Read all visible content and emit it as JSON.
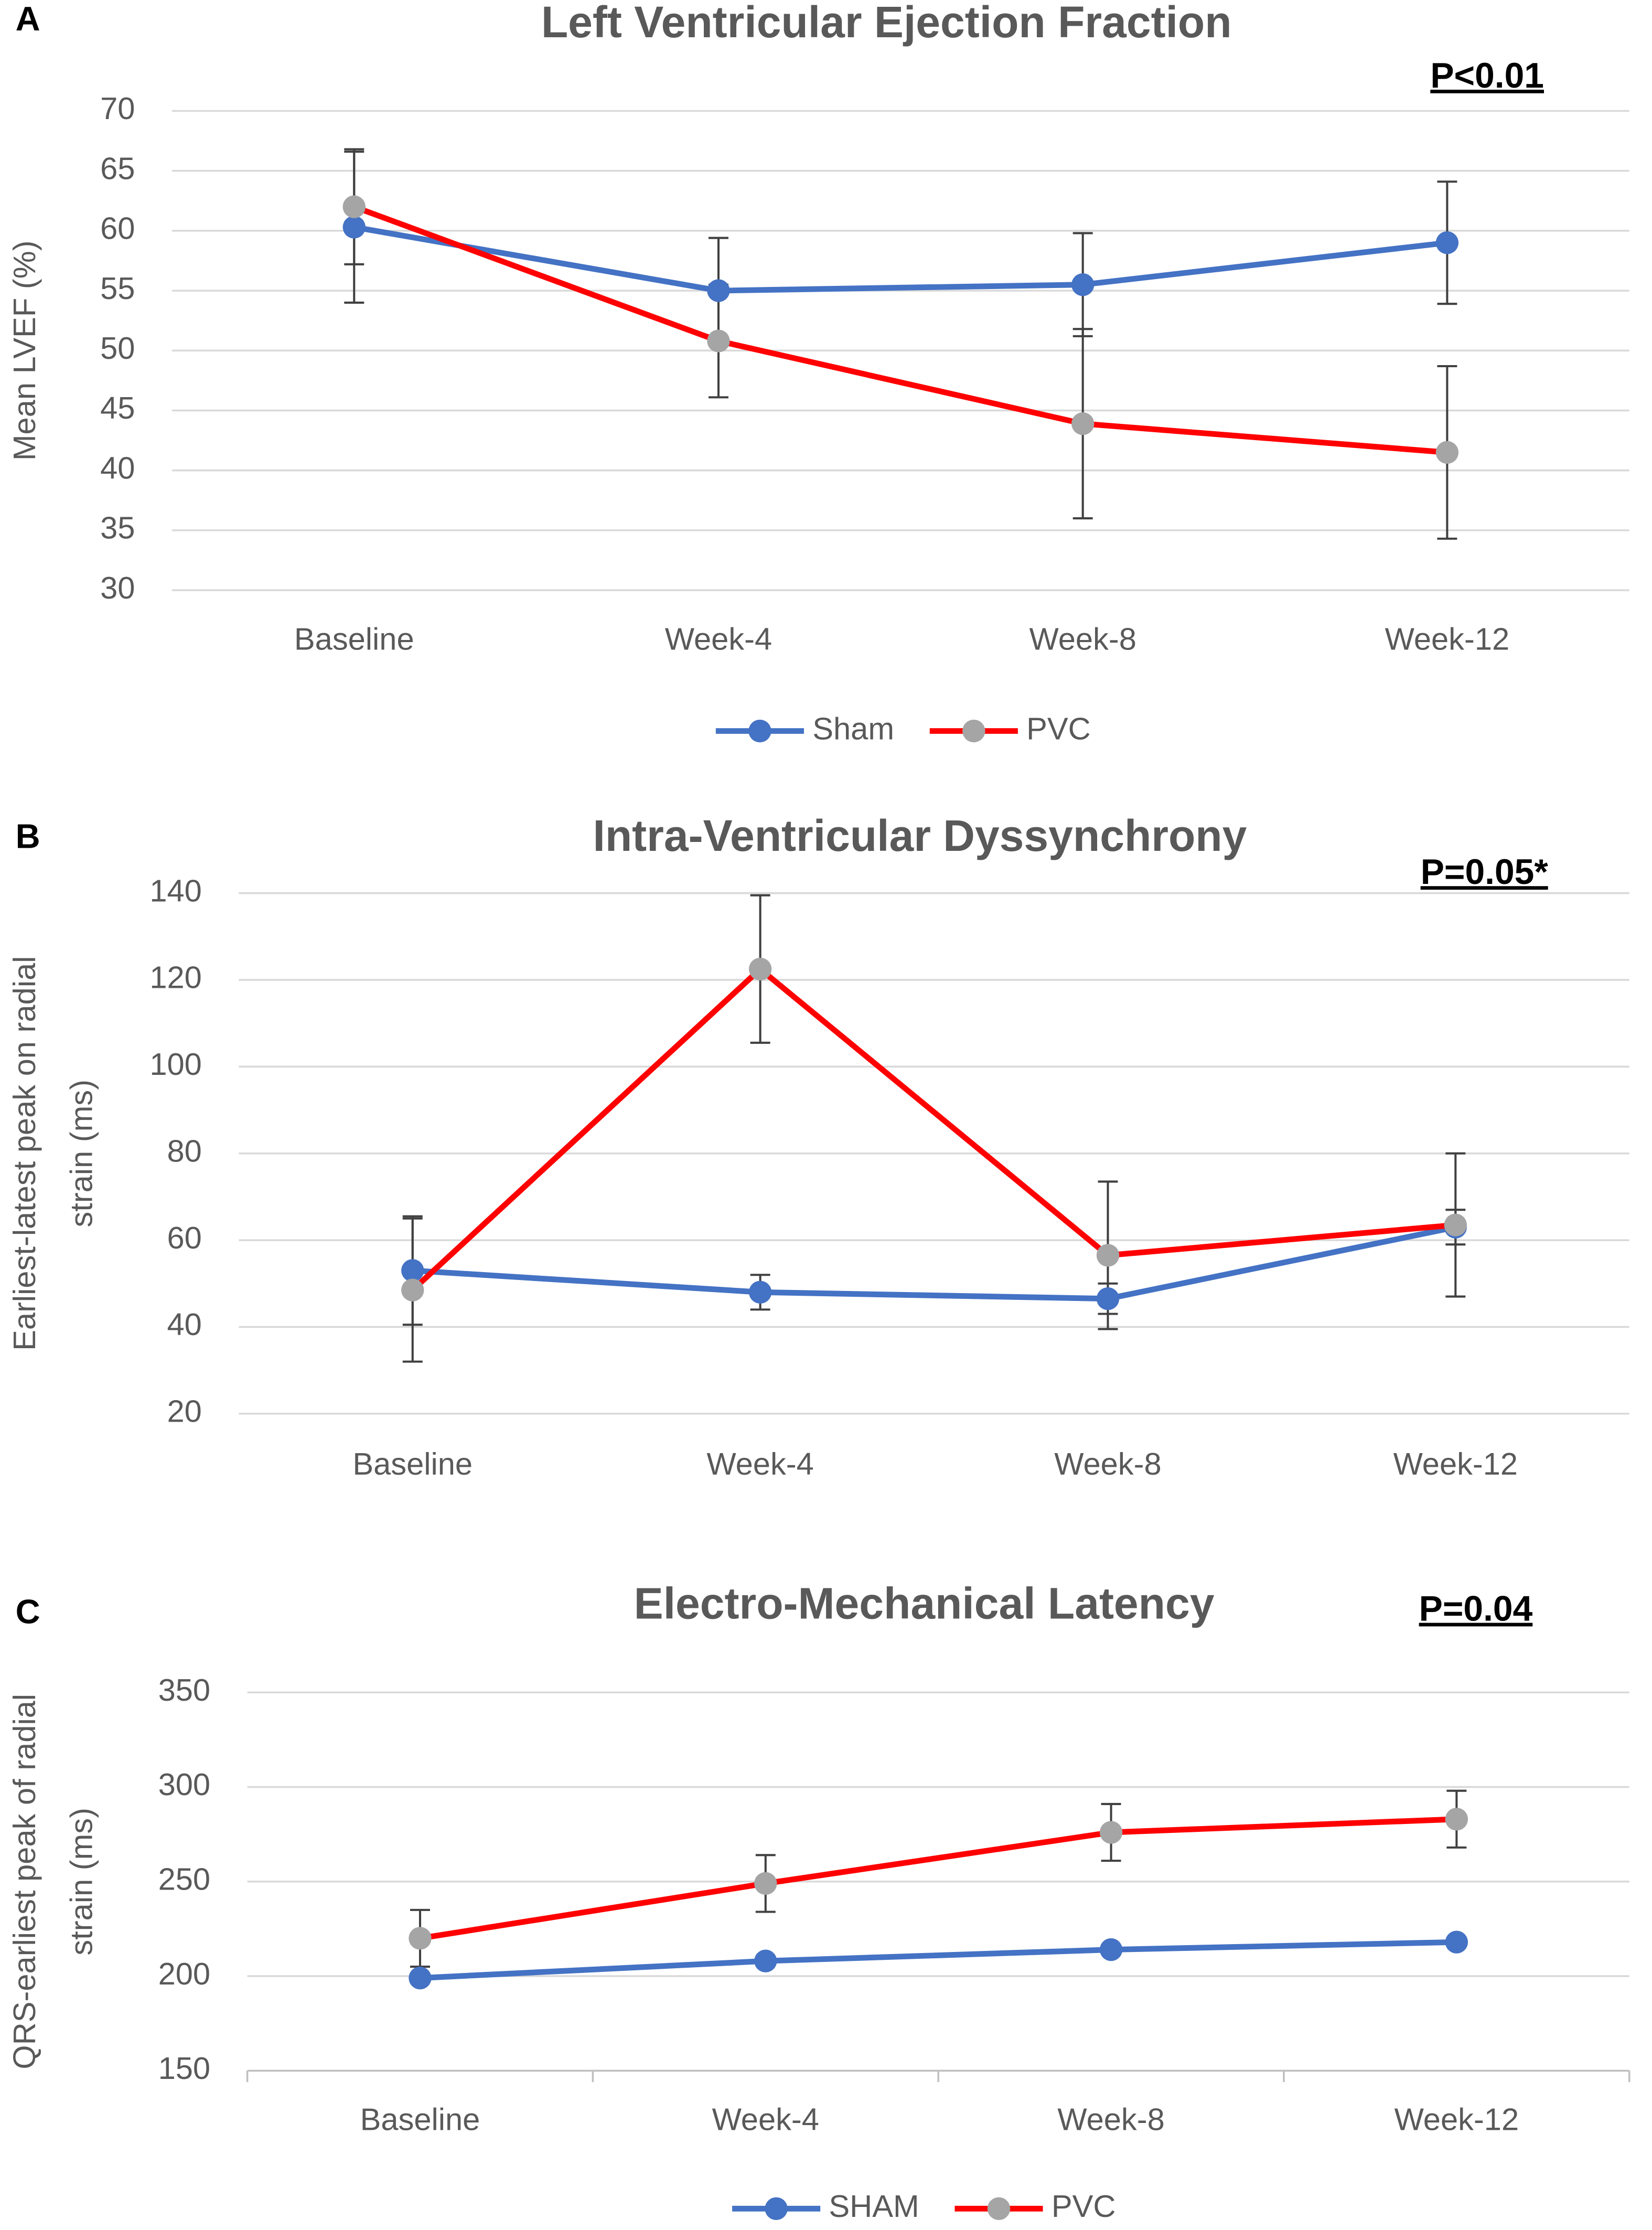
{
  "chart_data": [
    {
      "type": "line",
      "panel": "A",
      "title": "Left Ventricular Ejection Fraction",
      "annotation": "P<0.01",
      "ylabel": [
        "Mean LVEF (%)"
      ],
      "categories": [
        "Baseline",
        "Week-4",
        "Week-8",
        "Week-12"
      ],
      "ylim": [
        30,
        70
      ],
      "yticks": [
        30,
        35,
        40,
        45,
        50,
        55,
        60,
        65,
        70
      ],
      "grid": true,
      "legend": "bottom",
      "series": [
        {
          "name": "Sham",
          "color": "#4472c4",
          "marker_color": "#4472c4",
          "values": [
            60.3,
            55,
            55.5,
            59
          ],
          "errors": [
            6.3,
            4.4,
            4.3,
            5.1
          ]
        },
        {
          "name": "PVC",
          "color": "#ff0000",
          "marker_color": "#a5a5a5",
          "values": [
            62,
            50.8,
            43.9,
            41.5
          ],
          "errors": [
            4.8,
            4.7,
            7.9,
            7.2
          ]
        }
      ]
    },
    {
      "type": "line",
      "panel": "B",
      "title": "Intra-Ventricular Dyssynchrony",
      "annotation": "P=0.05*",
      "ylabel": [
        "Earliest-latest peak on radial",
        "strain (ms)"
      ],
      "categories": [
        "Baseline",
        "Week-4",
        "Week-8",
        "Week-12"
      ],
      "ylim": [
        20,
        140
      ],
      "yticks": [
        20,
        40,
        60,
        80,
        100,
        120,
        140
      ],
      "grid": true,
      "series": [
        {
          "name": "Sham",
          "color": "#4472c4",
          "marker_color": "#4472c4",
          "values": [
            53,
            48,
            46.5,
            63
          ],
          "errors": [
            12.5,
            4,
            3.5,
            4
          ]
        },
        {
          "name": "PVC",
          "color": "#ff0000",
          "marker_color": "#a5a5a5",
          "values": [
            48.5,
            122.5,
            56.5,
            63.5
          ],
          "errors": [
            16.5,
            17,
            17,
            16.5
          ]
        }
      ]
    },
    {
      "type": "line",
      "panel": "C",
      "title": "Electro-Mechanical Latency",
      "annotation": "P=0.04",
      "ylabel": [
        "QRS-earliest peak of radial",
        "strain (ms)"
      ],
      "categories": [
        "Baseline",
        "Week-4",
        "Week-8",
        "Week-12"
      ],
      "ylim": [
        150,
        350
      ],
      "yticks": [
        150,
        200,
        250,
        300,
        350
      ],
      "grid": true,
      "legend": "bottom",
      "series": [
        {
          "name": "SHAM",
          "color": "#4472c4",
          "marker_color": "#4472c4",
          "values": [
            199,
            208,
            214,
            218
          ],
          "errors": [
            2,
            2,
            2,
            2
          ]
        },
        {
          "name": "PVC",
          "color": "#ff0000",
          "marker_color": "#a5a5a5",
          "values": [
            220,
            249,
            276,
            283
          ],
          "errors": [
            15,
            15,
            15,
            15
          ]
        }
      ]
    }
  ]
}
